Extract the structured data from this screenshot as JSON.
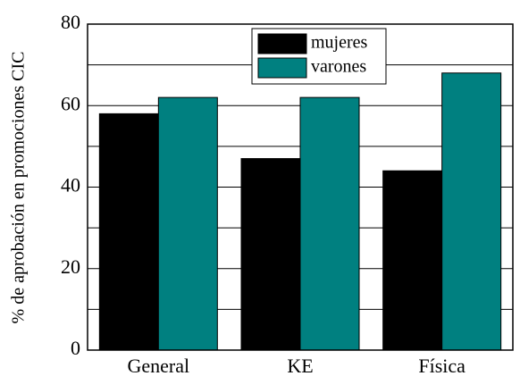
{
  "chart_data": {
    "type": "bar",
    "y_label": "% de aprobación en promociones CIC",
    "categories": [
      "General",
      "KE",
      "Física"
    ],
    "series": [
      {
        "name": "mujeres",
        "color": "#000000",
        "values": [
          58,
          47,
          44
        ]
      },
      {
        "name": "varones",
        "color": "#008080",
        "values": [
          62,
          62,
          68
        ]
      }
    ],
    "ylim": [
      0,
      80
    ],
    "yticks": [
      0,
      20,
      40,
      60,
      80
    ],
    "y_minor_gridlines": [
      10,
      30,
      50,
      70
    ],
    "grid": true,
    "legend": "top"
  }
}
